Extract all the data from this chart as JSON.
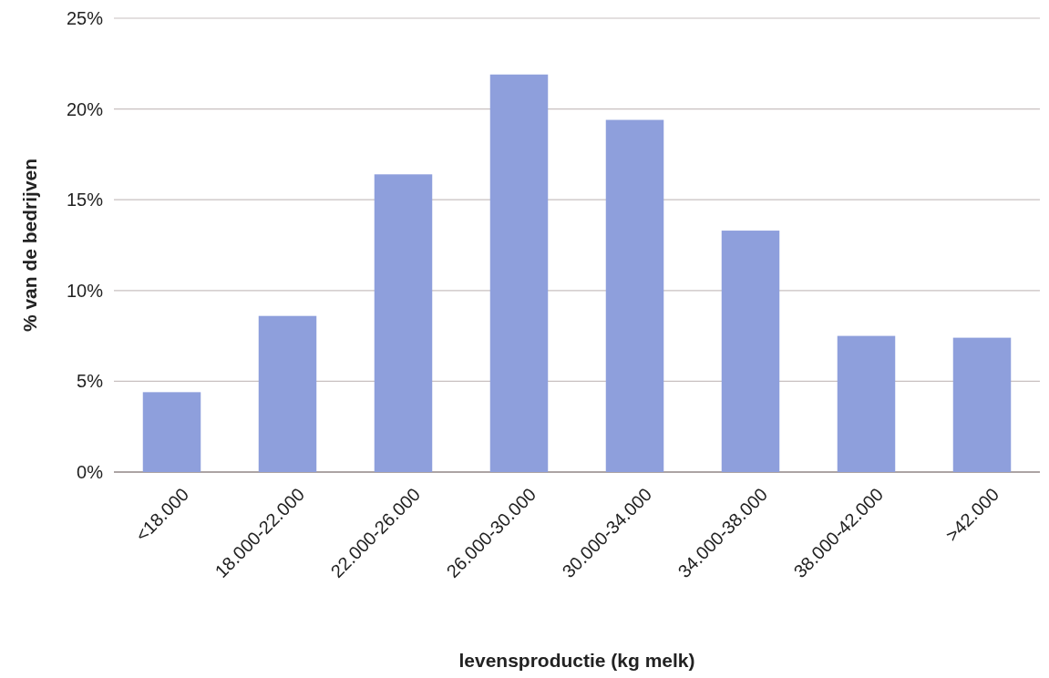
{
  "chart_data": {
    "type": "bar",
    "xlabel": "levensproductie (kg melk)",
    "ylabel": "% van de bedrijven",
    "categories": [
      "<18.000",
      "18.000-22.000",
      "22.000-26.000",
      "26.000-30.000",
      "30.000-34.000",
      "34.000-38.000",
      "38.000-42.000",
      ">42.000"
    ],
    "values": [
      4.4,
      8.6,
      16.4,
      21.9,
      19.4,
      13.3,
      7.5,
      7.4
    ],
    "color": "#8e9fdc",
    "ylim": [
      0,
      25
    ],
    "yticks": [
      {
        "value": 0,
        "label": "0%"
      },
      {
        "value": 5,
        "label": "5%"
      },
      {
        "value": 10,
        "label": "10%"
      },
      {
        "value": 15,
        "label": "15%"
      },
      {
        "value": 20,
        "label": "20%"
      },
      {
        "value": 25,
        "label": "25%"
      }
    ],
    "grid": "y"
  }
}
